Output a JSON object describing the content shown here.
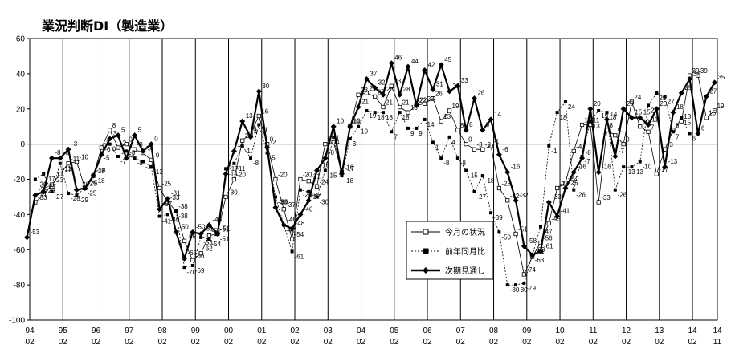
{
  "chart_data": {
    "type": "line",
    "title": "業況判断DI（製造業）",
    "ylim": [
      -100,
      60
    ],
    "yticks": [
      60,
      40,
      20,
      0,
      -20,
      -40,
      -60,
      -80,
      -100
    ],
    "xlim": [
      1994.0833,
      2014.8333
    ],
    "xticks": [
      {
        "year": "94",
        "month": "02",
        "x": 1994.0833
      },
      {
        "year": "95",
        "month": "02",
        "x": 1995.0833
      },
      {
        "year": "96",
        "month": "02",
        "x": 1996.0833
      },
      {
        "year": "97",
        "month": "02",
        "x": 1997.0833
      },
      {
        "year": "98",
        "month": "02",
        "x": 1998.0833
      },
      {
        "year": "99",
        "month": "02",
        "x": 1999.0833
      },
      {
        "year": "00",
        "month": "02",
        "x": 2000.0833
      },
      {
        "year": "01",
        "month": "02",
        "x": 2001.0833
      },
      {
        "year": "02",
        "month": "02",
        "x": 2002.0833
      },
      {
        "year": "03",
        "month": "02",
        "x": 2003.0833
      },
      {
        "year": "04",
        "month": "02",
        "x": 2004.0833
      },
      {
        "year": "05",
        "month": "02",
        "x": 2005.0833
      },
      {
        "year": "06",
        "month": "02",
        "x": 2006.0833
      },
      {
        "year": "07",
        "month": "02",
        "x": 2007.0833
      },
      {
        "year": "08",
        "month": "02",
        "x": 2008.0833
      },
      {
        "year": "09",
        "month": "02",
        "x": 2009.0833
      },
      {
        "year": "10",
        "month": "02",
        "x": 2010.0833
      },
      {
        "year": "11",
        "month": "02",
        "x": 2011.0833
      },
      {
        "year": "12",
        "month": "02",
        "x": 2012.0833
      },
      {
        "year": "13",
        "month": "02",
        "x": 2013.0833
      },
      {
        "year": "14",
        "month": "02",
        "x": 2014.0833
      },
      {
        "year": "14",
        "month": "11",
        "x": 2014.8333
      }
    ],
    "grid": "vertical lines at each year",
    "legend_position": "bottom-center",
    "series": [
      {
        "name": "今月の状況",
        "color": "#000000",
        "marker": "open-square",
        "style": "thin",
        "points": [
          [
            1994.25,
            -33
          ],
          [
            1994.5,
            -29
          ],
          [
            1994.75,
            -23
          ],
          [
            1995.0,
            -17
          ],
          [
            1995.25,
            -11
          ],
          [
            1995.5,
            -10
          ],
          [
            1995.75,
            -25
          ],
          [
            1996.0,
            -18
          ],
          [
            1996.25,
            -2
          ],
          [
            1996.5,
            8
          ],
          [
            1996.75,
            -2
          ],
          [
            1997.0,
            0
          ],
          [
            1997.25,
            -3
          ],
          [
            1997.5,
            -5
          ],
          [
            1997.75,
            -9
          ],
          [
            1998.0,
            -25
          ],
          [
            1998.25,
            -33
          ],
          [
            1998.5,
            -38
          ],
          [
            1998.75,
            -55
          ],
          [
            1999.0,
            -66
          ],
          [
            1999.25,
            -62
          ],
          [
            1999.5,
            -52
          ],
          [
            1999.75,
            -51
          ],
          [
            2000.0,
            -30
          ],
          [
            2000.25,
            -20
          ],
          [
            2000.5,
            2
          ],
          [
            2000.75,
            6
          ],
          [
            2001.0,
            16
          ],
          [
            2001.25,
            0
          ],
          [
            2001.5,
            -20
          ],
          [
            2001.75,
            -37
          ],
          [
            2002.0,
            -54
          ],
          [
            2002.25,
            -20
          ],
          [
            2002.5,
            -21
          ],
          [
            2002.75,
            -24
          ],
          [
            2003.0,
            0
          ],
          [
            2003.25,
            1
          ],
          [
            2003.5,
            -16
          ],
          [
            2003.75,
            10
          ],
          [
            2004.0,
            28
          ],
          [
            2004.25,
            29
          ],
          [
            2004.5,
            27
          ],
          [
            2004.75,
            21
          ],
          [
            2005.0,
            33
          ],
          [
            2005.25,
            21
          ],
          [
            2005.5,
            18
          ],
          [
            2005.75,
            22
          ],
          [
            2006.0,
            23
          ],
          [
            2006.25,
            26
          ],
          [
            2006.5,
            13
          ],
          [
            2006.75,
            19
          ],
          [
            2007.0,
            8
          ],
          [
            2007.25,
            0
          ],
          [
            2007.5,
            -3
          ],
          [
            2007.75,
            -3
          ],
          [
            2008.0,
            -1
          ],
          [
            2008.25,
            -25
          ],
          [
            2008.5,
            -32
          ],
          [
            2008.75,
            -51
          ],
          [
            2009.0,
            -74
          ],
          [
            2009.25,
            -64
          ],
          [
            2009.5,
            -56
          ],
          [
            2009.75,
            -45
          ],
          [
            2010.0,
            -25
          ],
          [
            2010.25,
            -22
          ],
          [
            2010.5,
            -4
          ],
          [
            2010.75,
            11
          ],
          [
            2011.0,
            11
          ],
          [
            2011.25,
            -33
          ],
          [
            2011.5,
            8
          ],
          [
            2011.75,
            5
          ],
          [
            2012.0,
            0
          ],
          [
            2012.25,
            24
          ],
          [
            2012.5,
            10
          ],
          [
            2012.75,
            7
          ],
          [
            2013.0,
            -17
          ],
          [
            2013.25,
            -3
          ],
          [
            2013.5,
            8
          ],
          [
            2013.75,
            13
          ],
          [
            2014.0,
            39
          ],
          [
            2014.25,
            39
          ],
          [
            2014.5,
            15
          ],
          [
            2014.75,
            19
          ]
        ]
      },
      {
        "name": "前年同月比",
        "color": "#000000",
        "marker": "filled-square",
        "style": "dotted",
        "points": [
          [
            1994.25,
            -20
          ],
          [
            1994.5,
            -17
          ],
          [
            1994.75,
            -27
          ],
          [
            1995.0,
            -11
          ],
          [
            1995.25,
            -28
          ],
          [
            1995.5,
            -29
          ],
          [
            1995.75,
            -25
          ],
          [
            1996.0,
            -18
          ],
          [
            1996.25,
            -5
          ],
          [
            1996.5,
            0
          ],
          [
            1996.75,
            -7
          ],
          [
            1997.0,
            -4
          ],
          [
            1997.25,
            -8
          ],
          [
            1997.5,
            -10
          ],
          [
            1997.75,
            -13
          ],
          [
            1998.0,
            -41
          ],
          [
            1998.25,
            -40
          ],
          [
            1998.5,
            -38
          ],
          [
            1998.75,
            -70
          ],
          [
            1999.0,
            -69
          ],
          [
            1999.25,
            -53
          ],
          [
            1999.5,
            -54
          ],
          [
            1999.75,
            -51
          ],
          [
            2000.0,
            -14
          ],
          [
            2000.25,
            -11
          ],
          [
            2000.5,
            -1
          ],
          [
            2000.75,
            -8
          ],
          [
            2001.0,
            11
          ],
          [
            2001.25,
            -5
          ],
          [
            2001.5,
            -30
          ],
          [
            2001.75,
            -46
          ],
          [
            2002.0,
            -61
          ],
          [
            2002.25,
            -26
          ],
          [
            2002.5,
            -27
          ],
          [
            2002.75,
            -30
          ],
          [
            2003.0,
            -15
          ],
          [
            2003.25,
            4
          ],
          [
            2003.5,
            -18
          ],
          [
            2003.75,
            3
          ],
          [
            2004.0,
            10
          ],
          [
            2004.25,
            19
          ],
          [
            2004.5,
            18
          ],
          [
            2004.75,
            18
          ],
          [
            2005.0,
            7
          ],
          [
            2005.25,
            18
          ],
          [
            2005.5,
            9
          ],
          [
            2005.75,
            9
          ],
          [
            2006.0,
            14
          ],
          [
            2006.25,
            1
          ],
          [
            2006.5,
            -8
          ],
          [
            2006.75,
            4
          ],
          [
            2007.0,
            -8
          ],
          [
            2007.25,
            -15
          ],
          [
            2007.5,
            -27
          ],
          [
            2007.75,
            -18
          ],
          [
            2008.0,
            -39
          ],
          [
            2008.25,
            -50
          ],
          [
            2008.5,
            -80
          ],
          [
            2008.75,
            -80
          ],
          [
            2009.0,
            -79
          ],
          [
            2009.25,
            -63
          ],
          [
            2009.5,
            -47
          ],
          [
            2009.75,
            -1
          ],
          [
            2010.0,
            18
          ],
          [
            2010.25,
            24
          ],
          [
            2010.5,
            -26
          ],
          [
            2010.75,
            -7
          ],
          [
            2011.0,
            13
          ],
          [
            2011.25,
            19
          ],
          [
            2011.5,
            18
          ],
          [
            2011.75,
            -26
          ],
          [
            2012.0,
            -13
          ],
          [
            2012.25,
            -13
          ],
          [
            2012.5,
            -10
          ],
          [
            2012.75,
            22
          ],
          [
            2013.0,
            29
          ],
          [
            2013.25,
            27
          ],
          [
            2013.5,
            7
          ],
          [
            2013.75,
            15
          ],
          [
            2014.0,
            6
          ]
        ]
      },
      {
        "name": "次期見通し",
        "color": "#000000",
        "marker": "filled-diamond",
        "style": "bold",
        "points": [
          [
            1994.0,
            -53
          ],
          [
            1994.25,
            -29
          ],
          [
            1994.5,
            -27
          ],
          [
            1994.75,
            -8
          ],
          [
            1995.0,
            -8
          ],
          [
            1995.25,
            -3
          ],
          [
            1995.5,
            -26
          ],
          [
            1995.75,
            -25
          ],
          [
            1996.0,
            -18
          ],
          [
            1996.25,
            -6
          ],
          [
            1996.5,
            3
          ],
          [
            1996.75,
            5
          ],
          [
            1997.0,
            -8
          ],
          [
            1997.25,
            5
          ],
          [
            1997.5,
            -4
          ],
          [
            1997.75,
            0
          ],
          [
            1998.0,
            -37
          ],
          [
            1998.25,
            -31
          ],
          [
            1998.5,
            -50
          ],
          [
            1998.75,
            -65
          ],
          [
            1999.0,
            -50
          ],
          [
            1999.25,
            -51
          ],
          [
            1999.5,
            -46
          ],
          [
            1999.75,
            -51
          ],
          [
            2000.0,
            -17
          ],
          [
            2000.25,
            -4
          ],
          [
            2000.5,
            13
          ],
          [
            2000.75,
            4
          ],
          [
            2001.0,
            30
          ],
          [
            2001.25,
            -2
          ],
          [
            2001.5,
            -36
          ],
          [
            2001.75,
            -46
          ],
          [
            2002.0,
            -48
          ],
          [
            2002.25,
            -40
          ],
          [
            2002.5,
            -32
          ],
          [
            2002.75,
            -15
          ],
          [
            2003.0,
            -8
          ],
          [
            2003.25,
            10
          ],
          [
            2003.5,
            -17
          ],
          [
            2003.75,
            10
          ],
          [
            2004.0,
            21
          ],
          [
            2004.25,
            37
          ],
          [
            2004.5,
            32
          ],
          [
            2004.75,
            28
          ],
          [
            2005.0,
            46
          ],
          [
            2005.25,
            28
          ],
          [
            2005.5,
            44
          ],
          [
            2005.75,
            22
          ],
          [
            2006.0,
            42
          ],
          [
            2006.25,
            31
          ],
          [
            2006.5,
            45
          ],
          [
            2006.75,
            30
          ],
          [
            2007.0,
            33
          ],
          [
            2007.25,
            8
          ],
          [
            2007.5,
            26
          ],
          [
            2007.75,
            8
          ],
          [
            2008.0,
            14
          ],
          [
            2008.25,
            -6
          ],
          [
            2008.5,
            -16
          ],
          [
            2008.75,
            -32
          ],
          [
            2009.0,
            -58
          ],
          [
            2009.25,
            -63
          ],
          [
            2009.5,
            -61
          ],
          [
            2009.75,
            -33
          ],
          [
            2010.0,
            -41
          ],
          [
            2010.25,
            -25
          ],
          [
            2010.5,
            -16
          ],
          [
            2010.75,
            -8
          ],
          [
            2011.0,
            20
          ],
          [
            2011.25,
            -16
          ],
          [
            2011.5,
            14
          ],
          [
            2011.75,
            -7
          ],
          [
            2012.0,
            20
          ],
          [
            2012.25,
            15
          ],
          [
            2012.5,
            15
          ],
          [
            2012.75,
            11
          ],
          [
            2013.0,
            20
          ],
          [
            2013.25,
            -13
          ],
          [
            2013.5,
            18
          ],
          [
            2013.75,
            29
          ],
          [
            2014.0,
            37
          ],
          [
            2014.25,
            6
          ],
          [
            2014.5,
            27
          ],
          [
            2014.75,
            35
          ]
        ]
      }
    ]
  }
}
